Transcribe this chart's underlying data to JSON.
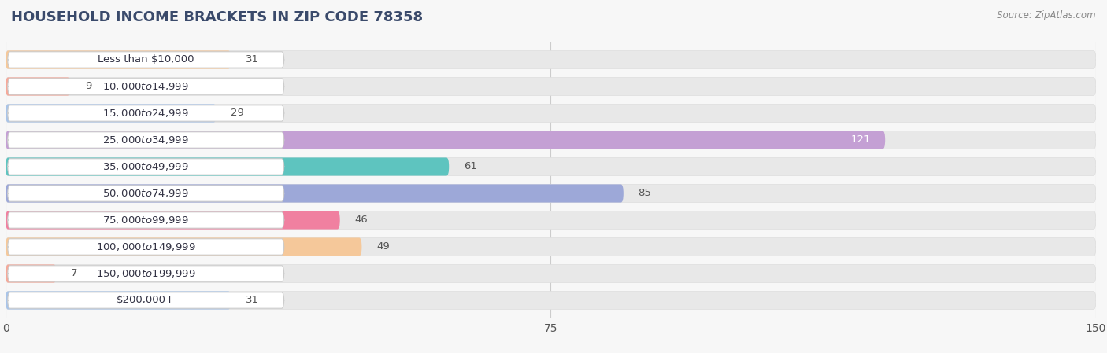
{
  "title": "HOUSEHOLD INCOME BRACKETS IN ZIP CODE 78358",
  "source": "Source: ZipAtlas.com",
  "categories": [
    "Less than $10,000",
    "$10,000 to $14,999",
    "$15,000 to $24,999",
    "$25,000 to $34,999",
    "$35,000 to $49,999",
    "$50,000 to $74,999",
    "$75,000 to $99,999",
    "$100,000 to $149,999",
    "$150,000 to $199,999",
    "$200,000+"
  ],
  "values": [
    31,
    9,
    29,
    121,
    61,
    85,
    46,
    49,
    7,
    31
  ],
  "colors": [
    "#f5c89a",
    "#f5a99a",
    "#a9c4e8",
    "#c4a0d4",
    "#5ec4bf",
    "#9da8d8",
    "#f080a0",
    "#f5c89a",
    "#f5a99a",
    "#a9c4e8"
  ],
  "xlim": [
    0,
    150
  ],
  "xticks": [
    0,
    75,
    150
  ],
  "background_color": "#f7f7f7",
  "bar_bg_color": "#e8e8e8",
  "bar_height": 0.68,
  "label_fontsize": 9.5,
  "title_fontsize": 13,
  "value_label_inside_color": "#ffffff",
  "value_label_outside_color": "#555555",
  "label_pill_color": "#ffffff",
  "label_text_color": "#333344"
}
